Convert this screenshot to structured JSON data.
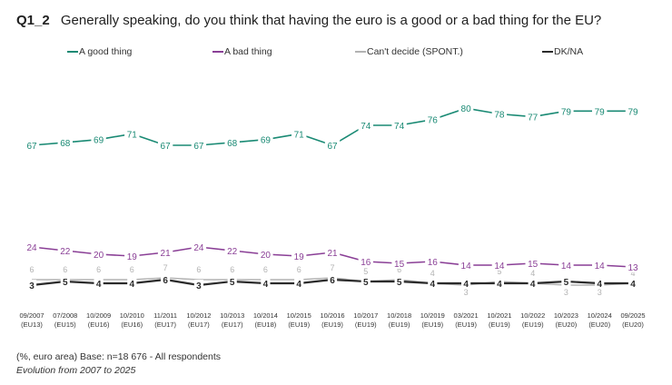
{
  "header": {
    "question_id": "Q1_2",
    "question_text": "Generally speaking, do you think that having the euro is a good or a bad thing for the EU?"
  },
  "footer": {
    "base": "(%, euro area) Base: n=18 676 -  All respondents",
    "note": "Evolution from 2007 to 2025"
  },
  "chart_data": {
    "type": "line",
    "x": [
      [
        "09/2007",
        "(EU13)"
      ],
      [
        "07/2008",
        "(EU15)"
      ],
      [
        "10/2009",
        "(EU16)"
      ],
      [
        "10/2010",
        "(EU16)"
      ],
      [
        "11/2011",
        "(EU17)"
      ],
      [
        "10/2012",
        "(EU17)"
      ],
      [
        "10/2013",
        "(EU17)"
      ],
      [
        "10/2014",
        "(EU18)"
      ],
      [
        "10/2015",
        "(EU19)"
      ],
      [
        "10/2016",
        "(EU19)"
      ],
      [
        "10/2017",
        "(EU19)"
      ],
      [
        "10/2018",
        "(EU19)"
      ],
      [
        "10/2019",
        "(EU19)"
      ],
      [
        "03/2021",
        "(EU19)"
      ],
      [
        "10/2021",
        "(EU19)"
      ],
      [
        "10/2022",
        "(EU19)"
      ],
      [
        "10/2023",
        "(EU20)"
      ],
      [
        "10/2024",
        "(EU20)"
      ],
      [
        "09/2025",
        "(EU20)"
      ]
    ],
    "ylim": [
      0,
      85
    ],
    "grid": false,
    "legend": "top",
    "series": [
      {
        "name": "A good thing",
        "color": "#1a8a74",
        "values": [
          67,
          68,
          69,
          71,
          67,
          67,
          68,
          69,
          71,
          67,
          74,
          74,
          76,
          80,
          78,
          77,
          79,
          79,
          79
        ]
      },
      {
        "name": "A bad thing",
        "color": "#8a3f96",
        "values": [
          24,
          22,
          20,
          19,
          21,
          24,
          22,
          20,
          19,
          21,
          16,
          15,
          16,
          14,
          14,
          15,
          14,
          14,
          13
        ]
      },
      {
        "name": "Can't decide (SPONT.)",
        "color": "#b3b3b3",
        "values": [
          6,
          6,
          6,
          6,
          7,
          6,
          6,
          6,
          6,
          7,
          5,
          6,
          4,
          3,
          5,
          4,
          3,
          3,
          4
        ]
      },
      {
        "name": "DK/NA",
        "color": "#2b2b2b",
        "values": [
          3,
          5,
          4,
          4,
          6,
          3,
          5,
          4,
          4,
          6,
          5,
          5,
          4,
          4,
          4,
          4,
          5,
          4,
          4
        ]
      }
    ]
  }
}
